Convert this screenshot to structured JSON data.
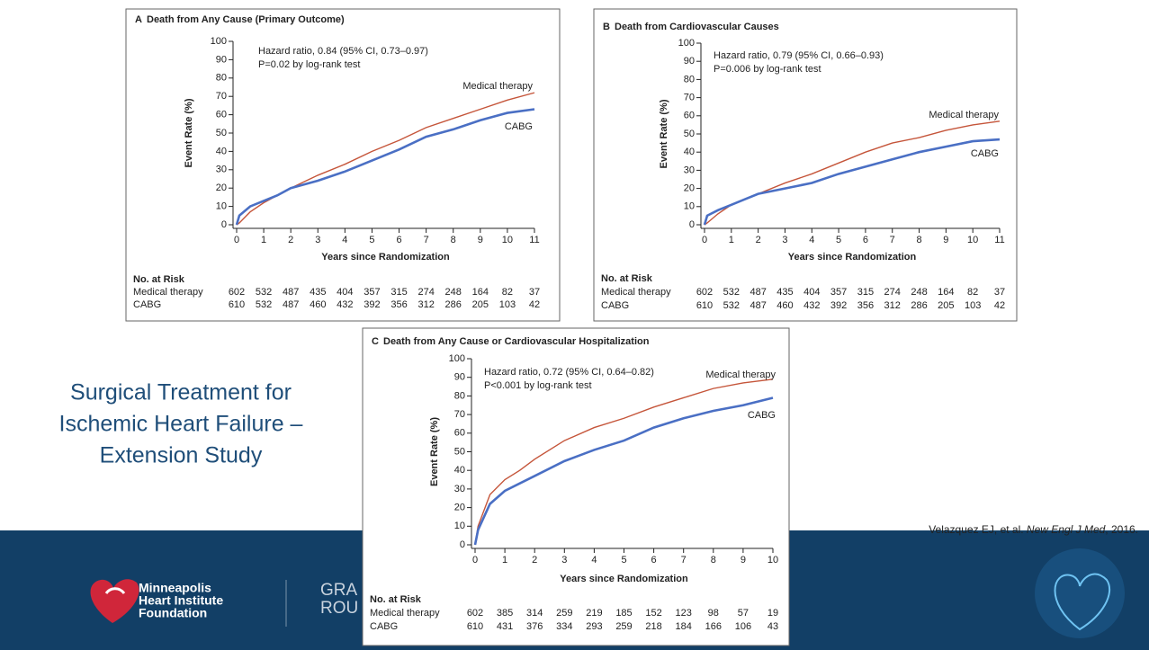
{
  "slide": {
    "title_lines": [
      "Surgical Treatment for",
      "Ischemic Heart Failure –",
      "Extension Study"
    ],
    "citation": {
      "authors": "Velazquez EJ, et al. ",
      "journal": "New Engl J Med",
      "year": ", 2016."
    },
    "logo_lines": [
      "Minneapolis",
      "Heart Institute",
      "Foundation"
    ],
    "banner_text": [
      "GRA",
      "ROU"
    ]
  },
  "chart_data": [
    {
      "type": "line",
      "panel": "A",
      "title": "Death from Any Cause (Primary Outcome)",
      "annotations": [
        "Hazard ratio, 0.84 (95% CI, 0.73–0.97)",
        "P=0.02 by log-rank test"
      ],
      "x_label": "Years since Randomization",
      "y_label": "Event Rate (%)",
      "x": [
        0,
        0.1,
        0.5,
        1,
        1.5,
        2,
        3,
        4,
        5,
        6,
        7,
        8,
        9,
        10,
        11
      ],
      "series": [
        {
          "name": "Medical therapy",
          "color": "#c5553a",
          "values": [
            0,
            1,
            7,
            12,
            16,
            20,
            27,
            33,
            40,
            46,
            53,
            58,
            63,
            68,
            72
          ]
        },
        {
          "name": "CABG",
          "color": "#4a6fc4",
          "values": [
            0,
            5,
            10,
            13,
            16,
            20,
            24,
            29,
            35,
            41,
            48,
            52,
            57,
            61,
            63
          ]
        }
      ],
      "xlim": [
        0,
        11
      ],
      "xticks": [
        0,
        1,
        2,
        3,
        4,
        5,
        6,
        7,
        8,
        9,
        10,
        11
      ],
      "ylim": [
        0,
        100
      ],
      "yticks": [
        0,
        10,
        20,
        30,
        40,
        50,
        60,
        70,
        80,
        90,
        100
      ],
      "risk_table": {
        "title": "No. at Risk",
        "rows": [
          {
            "label": "Medical therapy",
            "values": [
              602,
              532,
              487,
              435,
              404,
              357,
              315,
              274,
              248,
              164,
              82,
              37
            ]
          },
          {
            "label": "CABG",
            "values": [
              610,
              532,
              487,
              460,
              432,
              392,
              356,
              312,
              286,
              205,
              103,
              42
            ]
          }
        ]
      }
    },
    {
      "type": "line",
      "panel": "B",
      "title": "Death from Cardiovascular Causes",
      "annotations": [
        "Hazard ratio, 0.79 (95% CI, 0.66–0.93)",
        "P=0.006 by log-rank test"
      ],
      "x_label": "Years since Randomization",
      "y_label": "Event Rate (%)",
      "x": [
        0,
        0.1,
        0.5,
        1,
        1.5,
        2,
        3,
        4,
        5,
        6,
        7,
        8,
        9,
        10,
        11
      ],
      "series": [
        {
          "name": "Medical therapy",
          "color": "#c5553a",
          "values": [
            0,
            1,
            6,
            11,
            14,
            17,
            23,
            28,
            34,
            40,
            45,
            48,
            52,
            55,
            57
          ]
        },
        {
          "name": "CABG",
          "color": "#4a6fc4",
          "values": [
            0,
            5,
            8,
            11,
            14,
            17,
            20,
            23,
            28,
            32,
            36,
            40,
            43,
            46,
            47
          ]
        }
      ],
      "xlim": [
        0,
        11
      ],
      "xticks": [
        0,
        1,
        2,
        3,
        4,
        5,
        6,
        7,
        8,
        9,
        10,
        11
      ],
      "ylim": [
        0,
        100
      ],
      "yticks": [
        0,
        10,
        20,
        30,
        40,
        50,
        60,
        70,
        80,
        90,
        100
      ],
      "risk_table": {
        "title": "No. at Risk",
        "rows": [
          {
            "label": "Medical therapy",
            "values": [
              602,
              532,
              487,
              435,
              404,
              357,
              315,
              274,
              248,
              164,
              82,
              37
            ]
          },
          {
            "label": "CABG",
            "values": [
              610,
              532,
              487,
              460,
              432,
              392,
              356,
              312,
              286,
              205,
              103,
              42
            ]
          }
        ]
      }
    },
    {
      "type": "line",
      "panel": "C",
      "title": "Death from Any Cause or Cardiovascular Hospitalization",
      "annotations": [
        "Hazard ratio, 0.72 (95% CI, 0.64–0.82)",
        "P<0.001 by log-rank test"
      ],
      "x_label": "Years since Randomization",
      "y_label": "Event Rate (%)",
      "x": [
        0,
        0.1,
        0.5,
        1,
        1.5,
        2,
        3,
        4,
        5,
        6,
        7,
        8,
        9,
        10
      ],
      "series": [
        {
          "name": "Medical therapy",
          "color": "#c5553a",
          "values": [
            0,
            10,
            27,
            35,
            40,
            46,
            56,
            63,
            68,
            74,
            79,
            84,
            87,
            89
          ]
        },
        {
          "name": "CABG",
          "color": "#4a6fc4",
          "values": [
            0,
            8,
            22,
            29,
            33,
            37,
            45,
            51,
            56,
            63,
            68,
            72,
            75,
            79
          ]
        }
      ],
      "xlim": [
        0,
        10
      ],
      "xticks": [
        0,
        1,
        2,
        3,
        4,
        5,
        6,
        7,
        8,
        9,
        10
      ],
      "ylim": [
        0,
        100
      ],
      "yticks": [
        0,
        10,
        20,
        30,
        40,
        50,
        60,
        70,
        80,
        90,
        100
      ],
      "risk_table": {
        "title": "No. at Risk",
        "rows": [
          {
            "label": "Medical therapy",
            "values": [
              602,
              385,
              314,
              259,
              219,
              185,
              152,
              123,
              98,
              57,
              19
            ]
          },
          {
            "label": "CABG",
            "values": [
              610,
              431,
              376,
              334,
              293,
              259,
              218,
              184,
              166,
              106,
              43
            ]
          }
        ]
      }
    }
  ]
}
